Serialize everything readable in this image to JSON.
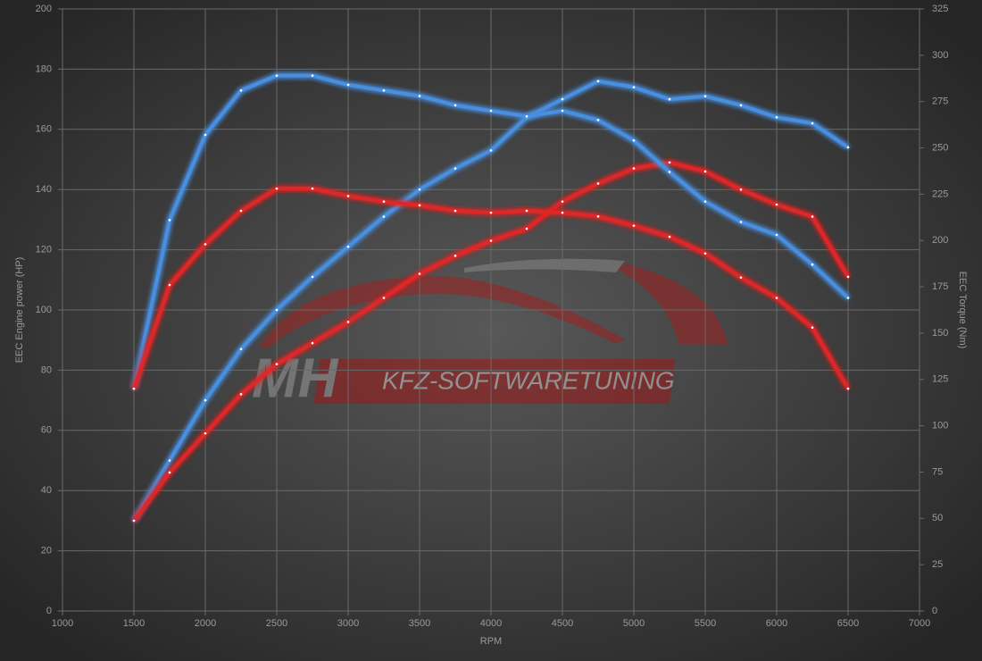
{
  "chart_data": {
    "type": "line",
    "xlabel": "RPM",
    "ylabel": "EEC Engine power (HP)",
    "y2label": "EEC Torque (Nm)",
    "watermark": {
      "left": "MH",
      "right": "KFZ-SOFTWARETUNING"
    },
    "x": [
      1500,
      1750,
      2000,
      2250,
      2500,
      2750,
      3000,
      3250,
      3500,
      3750,
      4000,
      4250,
      4500,
      4750,
      5000,
      5250,
      5500,
      5750,
      6000,
      6250,
      6500
    ],
    "series": [
      {
        "color": "#4a8fe0",
        "axis": "y",
        "values": [
          30,
          50,
          70,
          87,
          100,
          111,
          121,
          131,
          140,
          147,
          153,
          164,
          170,
          176,
          174,
          170,
          171,
          168,
          164,
          162,
          154
        ]
      },
      {
        "color": "#e02828",
        "axis": "y",
        "values": [
          30,
          46,
          59,
          72,
          82,
          89,
          96,
          104,
          112,
          118,
          123,
          127,
          136,
          142,
          147,
          149,
          146,
          140,
          135,
          131,
          111
        ]
      },
      {
        "color": "#4a8fe0",
        "axis": "y2",
        "values": [
          120,
          211,
          257,
          281,
          289,
          289,
          284,
          281,
          278,
          273,
          270,
          267,
          270,
          265,
          254,
          237,
          221,
          210,
          203,
          187,
          169
        ]
      },
      {
        "color": "#e02828",
        "axis": "y2",
        "values": [
          120,
          176,
          198,
          216,
          228,
          228,
          224,
          221,
          219,
          216,
          215,
          216,
          215,
          213,
          208,
          202,
          193,
          180,
          169,
          153,
          120
        ]
      }
    ],
    "xlim": [
      1000,
      7000
    ],
    "xticks": [
      1000,
      1500,
      2000,
      2500,
      3000,
      3500,
      4000,
      4500,
      5000,
      5500,
      6000,
      6500,
      7000
    ],
    "ylim": [
      0,
      200
    ],
    "yticks": [
      0,
      20,
      40,
      60,
      80,
      100,
      120,
      140,
      160,
      180,
      200
    ],
    "y2lim": [
      0,
      325
    ],
    "y2ticks": [
      0,
      25,
      50,
      75,
      100,
      125,
      150,
      175,
      200,
      225,
      250,
      275,
      300,
      325
    ],
    "grid": true
  }
}
